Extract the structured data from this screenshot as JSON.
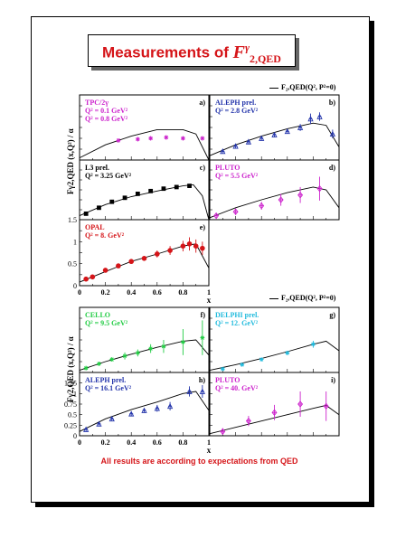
{
  "title": {
    "prefix": "Measurements of ",
    "symbol": "F",
    "sup": "γ",
    "sub": "2,QED"
  },
  "legend_text": "F₂,QED(Q², P²=0)",
  "ylabel": "Fγ2,QED (x,Q²) / α",
  "footer": "All results are according to expectations from QED",
  "colors": {
    "title": "#d51418",
    "magenta": "#cc22cc",
    "blue": "#2233aa",
    "red": "#d51418",
    "green": "#22cc44",
    "cyan": "#22bbdd",
    "black": "#000000"
  },
  "chart_data": [
    {
      "type": "scatter",
      "id": "a",
      "panel_letter": "a)",
      "label_lines": [
        "TPC/2γ",
        "Q² = 0.1 GeV²",
        "Q² = 0.8 GeV²"
      ],
      "label_color": "magenta",
      "series": [
        {
          "marker": "star",
          "color": "magenta",
          "x": [
            0.3,
            0.45,
            0.55,
            0.67,
            0.8,
            0.95
          ],
          "y": [
            0.45,
            0.48,
            0.5,
            0.52,
            0.5,
            0.5
          ],
          "err": [
            0.05,
            0.05,
            0.05,
            0.05,
            0.05,
            0.05
          ]
        }
      ],
      "curves": [
        {
          "x": [
            0.0,
            0.2,
            0.4,
            0.6,
            0.8,
            0.9,
            1.0
          ],
          "y": [
            0.05,
            0.35,
            0.55,
            0.7,
            0.7,
            0.6,
            0.0
          ]
        }
      ]
    },
    {
      "type": "scatter",
      "id": "b",
      "panel_letter": "b)",
      "label_lines": [
        "ALEPH prel.",
        "Q² = 2.8 GeV²"
      ],
      "label_color": "blue",
      "series": [
        {
          "marker": "open-triangle",
          "color": "blue",
          "x": [
            0.1,
            0.2,
            0.3,
            0.4,
            0.5,
            0.6,
            0.7,
            0.78,
            0.85,
            0.95
          ],
          "y": [
            0.2,
            0.32,
            0.42,
            0.5,
            0.58,
            0.66,
            0.75,
            0.95,
            1.0,
            0.6
          ],
          "err": [
            0.05,
            0.05,
            0.05,
            0.05,
            0.05,
            0.05,
            0.08,
            0.12,
            0.1,
            0.1
          ]
        }
      ],
      "curves": [
        {
          "x": [
            0.0,
            0.2,
            0.4,
            0.6,
            0.8,
            0.9,
            1.0
          ],
          "y": [
            0.1,
            0.35,
            0.55,
            0.72,
            0.85,
            0.8,
            0.3
          ]
        }
      ]
    },
    {
      "type": "scatter",
      "id": "c",
      "panel_letter": "c)",
      "label_lines": [
        "L3 prel.",
        "Q² = 3.25 GeV²"
      ],
      "label_color": "black",
      "series": [
        {
          "marker": "filled-square",
          "color": "black",
          "x": [
            0.05,
            0.15,
            0.25,
            0.35,
            0.45,
            0.55,
            0.65,
            0.75,
            0.85
          ],
          "y": [
            0.15,
            0.3,
            0.45,
            0.55,
            0.65,
            0.72,
            0.78,
            0.82,
            0.85
          ],
          "err": [
            0.03,
            0.03,
            0.03,
            0.03,
            0.03,
            0.03,
            0.03,
            0.03,
            0.03
          ]
        }
      ],
      "curves": [
        {
          "x": [
            0.0,
            0.2,
            0.4,
            0.6,
            0.8,
            0.88,
            0.95,
            1.0
          ],
          "y": [
            0.1,
            0.38,
            0.58,
            0.72,
            0.85,
            0.88,
            0.6,
            0.0
          ]
        }
      ]
    },
    {
      "type": "scatter",
      "id": "d",
      "panel_letter": "d)",
      "label_lines": [
        "PLUTO",
        "Q² = 5.5 GeV²"
      ],
      "label_color": "magenta",
      "series": [
        {
          "marker": "open-diamond",
          "color": "magenta",
          "x": [
            0.05,
            0.2,
            0.4,
            0.55,
            0.7,
            0.85
          ],
          "y": [
            0.1,
            0.2,
            0.35,
            0.5,
            0.62,
            0.78
          ],
          "err": [
            0.05,
            0.08,
            0.1,
            0.15,
            0.2,
            0.3
          ]
        }
      ],
      "curves": [
        {
          "x": [
            0.0,
            0.2,
            0.4,
            0.6,
            0.8,
            0.9,
            1.0
          ],
          "y": [
            0.05,
            0.3,
            0.5,
            0.68,
            0.82,
            0.75,
            0.3
          ]
        }
      ]
    },
    {
      "type": "scatter",
      "id": "e",
      "panel_letter": "e)",
      "label_lines": [
        "OPAL",
        "Q² = 8. GeV²"
      ],
      "label_color": "red",
      "xlabel": "x",
      "ylim": [
        0,
        1.5
      ],
      "xlim": [
        0,
        1
      ],
      "yticks": [
        "0",
        "0.5",
        "1",
        "1.5"
      ],
      "xticks": [
        "0",
        "0.2",
        "0.4",
        "0.6",
        "0.8",
        "1"
      ],
      "series": [
        {
          "marker": "filled-circle",
          "color": "red",
          "x": [
            0.05,
            0.1,
            0.2,
            0.3,
            0.4,
            0.5,
            0.6,
            0.7,
            0.8,
            0.85,
            0.9,
            0.95
          ],
          "y": [
            0.15,
            0.2,
            0.35,
            0.45,
            0.55,
            0.62,
            0.72,
            0.8,
            0.9,
            0.95,
            0.9,
            0.85
          ],
          "err": [
            0.05,
            0.05,
            0.05,
            0.05,
            0.05,
            0.05,
            0.08,
            0.1,
            0.12,
            0.15,
            0.15,
            0.15
          ]
        }
      ],
      "curves": [
        {
          "x": [
            0.0,
            0.2,
            0.4,
            0.6,
            0.8,
            0.9,
            1.0
          ],
          "y": [
            0.08,
            0.32,
            0.55,
            0.72,
            0.9,
            0.95,
            0.4
          ]
        }
      ]
    },
    {
      "type": "scatter",
      "id": "f",
      "panel_letter": "f)",
      "label_lines": [
        "CELLO",
        "Q² = 9.5 GeV²"
      ],
      "label_color": "green",
      "series": [
        {
          "marker": "star",
          "color": "green",
          "x": [
            0.05,
            0.15,
            0.25,
            0.35,
            0.45,
            0.55,
            0.65,
            0.8,
            0.95
          ],
          "y": [
            0.1,
            0.2,
            0.3,
            0.38,
            0.45,
            0.55,
            0.6,
            0.7,
            0.8
          ],
          "err": [
            0.05,
            0.05,
            0.05,
            0.08,
            0.08,
            0.1,
            0.15,
            0.3,
            0.4
          ]
        }
      ],
      "curves": [
        {
          "x": [
            0.0,
            0.2,
            0.4,
            0.6,
            0.8,
            0.9,
            1.0
          ],
          "y": [
            0.05,
            0.25,
            0.42,
            0.58,
            0.72,
            0.75,
            0.4
          ]
        }
      ]
    },
    {
      "type": "scatter",
      "id": "g",
      "panel_letter": "g)",
      "label_lines": [
        "DELPHI prel.",
        "Q² = 12. GeV²"
      ],
      "label_color": "cyan",
      "series": [
        {
          "marker": "star",
          "color": "cyan",
          "x": [
            0.1,
            0.25,
            0.4,
            0.6,
            0.8
          ],
          "y": [
            0.08,
            0.18,
            0.3,
            0.45,
            0.65
          ],
          "err": [
            0.03,
            0.03,
            0.03,
            0.05,
            0.08
          ]
        }
      ],
      "curves": [
        {
          "x": [
            0.0,
            0.2,
            0.4,
            0.6,
            0.8,
            0.9,
            1.0
          ],
          "y": [
            0.05,
            0.18,
            0.32,
            0.48,
            0.65,
            0.72,
            0.5
          ]
        }
      ]
    },
    {
      "type": "scatter",
      "id": "h",
      "panel_letter": "h)",
      "label_lines": [
        "ALEPH prel.",
        "Q² = 16.1 GeV²"
      ],
      "label_color": "blue",
      "xlabel": "x",
      "ylim": [
        0,
        1.5
      ],
      "xlim": [
        0,
        1
      ],
      "yticks": [
        "0",
        "0.25",
        "0.5",
        "0.75",
        "1",
        "1.25"
      ],
      "xticks": [
        "0",
        "0.2",
        "0.4",
        "0.6",
        "0.8",
        "1"
      ],
      "series": [
        {
          "marker": "open-triangle",
          "color": "blue",
          "x": [
            0.05,
            0.15,
            0.25,
            0.4,
            0.5,
            0.6,
            0.7,
            0.85,
            0.95
          ],
          "y": [
            0.15,
            0.28,
            0.4,
            0.52,
            0.6,
            0.65,
            0.7,
            1.05,
            1.05
          ],
          "err": [
            0.05,
            0.05,
            0.05,
            0.05,
            0.05,
            0.08,
            0.1,
            0.12,
            0.15
          ]
        }
      ],
      "curves": [
        {
          "x": [
            0.0,
            0.2,
            0.4,
            0.6,
            0.8,
            0.9,
            1.0
          ],
          "y": [
            0.1,
            0.4,
            0.62,
            0.8,
            1.0,
            1.05,
            0.6
          ]
        }
      ]
    },
    {
      "type": "scatter",
      "id": "i",
      "panel_letter": "i)",
      "label_lines": [
        "PLUTO",
        "Q² = 40. GeV²"
      ],
      "label_color": "magenta",
      "series": [
        {
          "marker": "open-diamond",
          "color": "magenta",
          "x": [
            0.1,
            0.3,
            0.5,
            0.7,
            0.9
          ],
          "y": [
            0.1,
            0.35,
            0.55,
            0.75,
            0.7
          ],
          "err": [
            0.08,
            0.12,
            0.18,
            0.3,
            0.35
          ]
        }
      ],
      "curves": [
        {
          "x": [
            0.0,
            0.2,
            0.4,
            0.6,
            0.8,
            0.9,
            1.0
          ],
          "y": [
            0.05,
            0.2,
            0.35,
            0.5,
            0.65,
            0.72,
            0.5
          ]
        }
      ]
    }
  ]
}
